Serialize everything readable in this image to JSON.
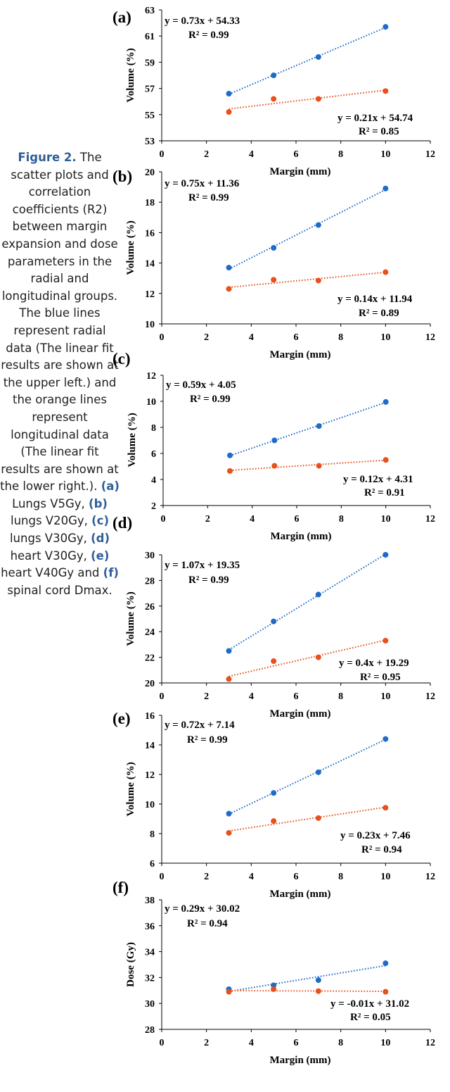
{
  "caption": {
    "heading": "Figure 2.",
    "text1": " The scatter plots and correlation coefficients (R2) between margin expansion and dose parameters in the radial and longitudinal groups. The blue lines represent radial data (The linear fit results are shown at the upper left.) and the orange lines represent longitudinal data (The linear fit results are shown at the lower right.). ",
    "a": "(a)",
    "t_a": " Lungs V5Gy, ",
    "b": "(b)",
    "t_b": " lungs V20Gy, ",
    "c": "(c)",
    "t_c": " lungs V30Gy, ",
    "d": "(d)",
    "t_d": " heart V30Gy, ",
    "e": "(e)",
    "t_e": " heart V40Gy and ",
    "f": "(f)",
    "t_f": " spinal cord Dmax."
  },
  "colors": {
    "radial": "#1f6cc8",
    "longitudinal": "#e8501c",
    "caption_label": "#2f5f97"
  },
  "chart_data": [
    {
      "panel": "(a)",
      "type": "scatter",
      "xlabel": "Margin (mm)",
      "ylabel": "Volume (%)",
      "xlim": [
        0,
        12
      ],
      "xticks": [
        0,
        2,
        4,
        6,
        8,
        10,
        12
      ],
      "ylim": [
        53,
        63
      ],
      "yticks": [
        53,
        55,
        57,
        59,
        61,
        63
      ],
      "series": [
        {
          "x": [
            3,
            5,
            7,
            10
          ],
          "y": [
            56.6,
            58.0,
            59.4,
            61.7
          ],
          "fit": "y = 0.73x + 54.33",
          "r2": "R² = 0.99",
          "color": "#1f6cc8"
        },
        {
          "x": [
            3,
            5,
            7,
            10
          ],
          "y": [
            55.2,
            56.2,
            56.2,
            56.8
          ],
          "fit": "y = 0.21x + 54.74",
          "r2": "R² = 0.85",
          "color": "#e8501c"
        }
      ]
    },
    {
      "panel": "(b)",
      "type": "scatter",
      "xlabel": "Margin (mm)",
      "ylabel": "Volume (%)",
      "xlim": [
        0,
        12
      ],
      "xticks": [
        0,
        2,
        4,
        6,
        8,
        10,
        12
      ],
      "ylim": [
        10,
        20
      ],
      "yticks": [
        10,
        12,
        14,
        16,
        18,
        20
      ],
      "series": [
        {
          "x": [
            3,
            5,
            7,
            10
          ],
          "y": [
            13.7,
            15.0,
            16.5,
            18.9
          ],
          "fit": "y = 0.75x + 11.36",
          "r2": "R² = 0.99",
          "color": "#1f6cc8"
        },
        {
          "x": [
            3,
            5,
            7,
            10
          ],
          "y": [
            12.3,
            12.9,
            12.85,
            13.4
          ],
          "fit": "y = 0.14x + 11.94",
          "r2": "R² = 0.89",
          "color": "#e8501c"
        }
      ]
    },
    {
      "panel": "(c)",
      "type": "scatter",
      "xlabel": "Margin (mm)",
      "ylabel": "Volume (%)",
      "xlim": [
        0,
        12
      ],
      "xticks": [
        0,
        2,
        4,
        6,
        8,
        10,
        12
      ],
      "ylim": [
        2,
        12
      ],
      "yticks": [
        2,
        4,
        6,
        8,
        10,
        12
      ],
      "series": [
        {
          "x": [
            3,
            5,
            7,
            10
          ],
          "y": [
            5.85,
            7.0,
            8.1,
            9.95
          ],
          "fit": "y = 0.59x + 4.05",
          "r2": "R² = 0.99",
          "color": "#1f6cc8"
        },
        {
          "x": [
            3,
            5,
            7,
            10
          ],
          "y": [
            4.65,
            5.05,
            5.05,
            5.5
          ],
          "fit": "y = 0.12x + 4.31",
          "r2": "R² = 0.91",
          "color": "#e8501c"
        }
      ]
    },
    {
      "panel": "(d)",
      "type": "scatter",
      "xlabel": "Margin (mm)",
      "ylabel": "Volume (%)",
      "xlim": [
        0,
        12
      ],
      "xticks": [
        0,
        2,
        4,
        6,
        8,
        10,
        12
      ],
      "ylim": [
        20,
        30
      ],
      "yticks": [
        20,
        22,
        24,
        26,
        28,
        30
      ],
      "series": [
        {
          "x": [
            3,
            5,
            7,
            10
          ],
          "y": [
            22.5,
            24.8,
            26.9,
            30.0
          ],
          "fit": "y = 1.07x + 19.35",
          "r2": "R² = 0.99",
          "color": "#1f6cc8"
        },
        {
          "x": [
            3,
            5,
            7,
            10
          ],
          "y": [
            20.3,
            21.7,
            22.0,
            23.3
          ],
          "fit": "y = 0.4x + 19.29",
          "r2": "R² = 0.95",
          "color": "#e8501c"
        }
      ]
    },
    {
      "panel": "(e)",
      "type": "scatter",
      "xlabel": "Margin (mm)",
      "ylabel": "Volume (%)",
      "xlim": [
        0,
        12
      ],
      "xticks": [
        0,
        2,
        4,
        6,
        8,
        10,
        12
      ],
      "ylim": [
        6,
        16
      ],
      "yticks": [
        6,
        8,
        10,
        12,
        14,
        16
      ],
      "series": [
        {
          "x": [
            3,
            5,
            7,
            10
          ],
          "y": [
            9.35,
            10.75,
            12.15,
            14.4
          ],
          "fit": "y = 0.72x + 7.14",
          "r2": "R² = 0.99",
          "color": "#1f6cc8"
        },
        {
          "x": [
            3,
            5,
            7,
            10
          ],
          "y": [
            8.05,
            8.85,
            9.05,
            9.75
          ],
          "fit": "y = 0.23x + 7.46",
          "r2": "R² = 0.94",
          "color": "#e8501c"
        }
      ]
    },
    {
      "panel": "(f)",
      "type": "scatter",
      "xlabel": "Margin (mm)",
      "ylabel": "Dose (Gy)",
      "xlim": [
        0,
        12
      ],
      "xticks": [
        0,
        2,
        4,
        6,
        8,
        10,
        12
      ],
      "ylim": [
        28,
        38
      ],
      "yticks": [
        28,
        30,
        32,
        34,
        36,
        38
      ],
      "series": [
        {
          "x": [
            3,
            5,
            7,
            10
          ],
          "y": [
            31.1,
            31.4,
            31.8,
            33.1
          ],
          "fit": "y = 0.29x + 30.02",
          "r2": "R² = 0.94",
          "color": "#1f6cc8"
        },
        {
          "x": [
            3,
            5,
            7,
            10
          ],
          "y": [
            30.9,
            31.1,
            30.95,
            30.9
          ],
          "fit": "y = -0.01x + 31.02",
          "r2": "R² = 0.05",
          "color": "#e8501c"
        }
      ]
    }
  ]
}
